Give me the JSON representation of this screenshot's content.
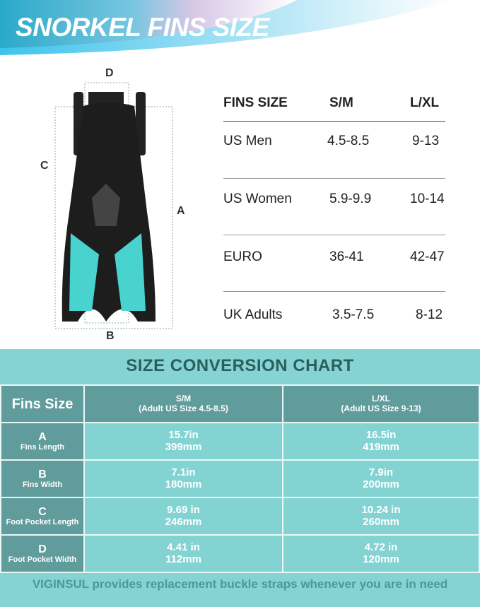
{
  "title": "SNORKEL FINS SIZE",
  "diagram": {
    "labels": {
      "a": "A",
      "b": "B",
      "c": "C",
      "d": "D"
    },
    "fin_accent_color": "#49d3cf"
  },
  "size_table": {
    "headers": [
      "FINS SIZE",
      "S/M",
      "L/XL"
    ],
    "rows": [
      {
        "label": "US Men",
        "sm": "4.5-8.5",
        "lxl": "9-13"
      },
      {
        "label": "US Women",
        "sm": "5.9-9.9",
        "lxl": "10-14"
      },
      {
        "label": "EURO",
        "sm": "36-41",
        "lxl": "42-47"
      },
      {
        "label": "UK Adults",
        "sm": "3.5-7.5",
        "lxl": "8-12"
      }
    ]
  },
  "chart": {
    "title": "SIZE CONVERSION CHART",
    "header": {
      "label": "Fins Size",
      "sm": "S/M",
      "sm_sub": "(Adult US Size 4.5-8.5)",
      "lxl": "L/XL",
      "lxl_sub": "(Adult US Size 9-13)"
    },
    "rows": [
      {
        "letter": "A",
        "name": "Fins Length",
        "sm_in": "15.7in",
        "sm_mm": "399mm",
        "lxl_in": "16.5in",
        "lxl_mm": "419mm"
      },
      {
        "letter": "B",
        "name": "Fins Width",
        "sm_in": "7.1in",
        "sm_mm": "180mm",
        "lxl_in": "7.9in",
        "lxl_mm": "200mm"
      },
      {
        "letter": "C",
        "name": "Foot Pocket Length",
        "sm_in": "9.69 in",
        "sm_mm": "246mm",
        "lxl_in": "10.24 in",
        "lxl_mm": "260mm"
      },
      {
        "letter": "D",
        "name": "Foot Pocket Width",
        "sm_in": "4.41 in",
        "sm_mm": "112mm",
        "lxl_in": "4.72 in",
        "lxl_mm": "120mm"
      }
    ]
  },
  "footer": "VIGINSUL provides replacement buckle straps whenever you are in need"
}
